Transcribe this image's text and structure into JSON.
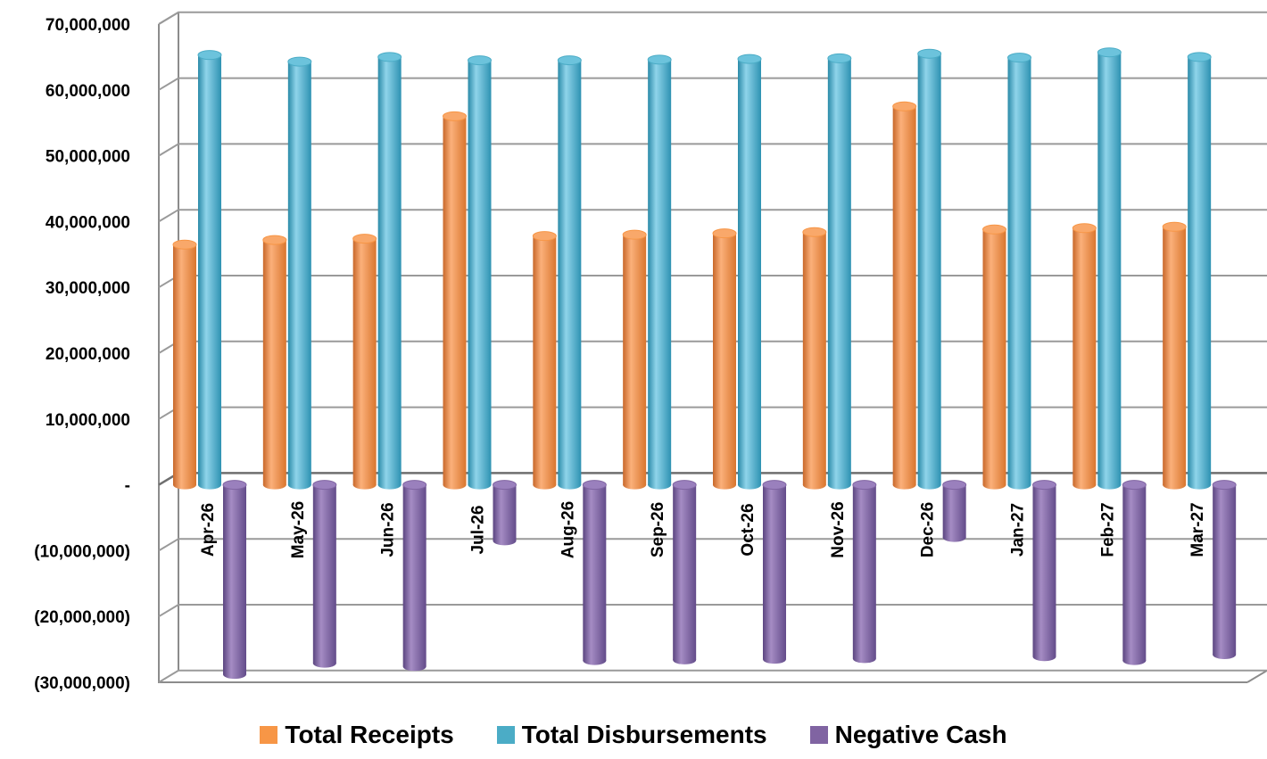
{
  "chart_data": {
    "type": "bar",
    "title": "",
    "xlabel": "",
    "ylabel": "",
    "ylim": [
      -30000000,
      70000000
    ],
    "yticks": [
      70000000,
      60000000,
      50000000,
      40000000,
      30000000,
      20000000,
      10000000,
      0,
      -10000000,
      -20000000,
      -30000000
    ],
    "ytick_labels": [
      "70,000,000",
      "60,000,000",
      "50,000,000",
      "40,000,000",
      "30,000,000",
      "20,000,000",
      "10,000,000",
      "-",
      "(10,000,000)",
      "(20,000,000)",
      "(30,000,000)"
    ],
    "categories": [
      "Apr-26",
      "May-26",
      "Jun-26",
      "Jul-26",
      "Aug-26",
      "Sep-26",
      "Oct-26",
      "Nov-26",
      "Dec-26",
      "Jan-27",
      "Feb-27",
      "Mar-27"
    ],
    "series": [
      {
        "name": "Total Receipts",
        "color": "#f79646",
        "values": [
          36500000,
          37200000,
          37400000,
          56000000,
          37800000,
          38000000,
          38200000,
          38400000,
          57500000,
          38800000,
          39000000,
          39200000
        ]
      },
      {
        "name": "Total Disbursements",
        "color": "#4bacc6",
        "values": [
          65300000,
          64300000,
          65000000,
          64500000,
          64500000,
          64600000,
          64700000,
          64800000,
          65500000,
          64900000,
          65700000,
          65000000
        ]
      },
      {
        "name": "Negative Cash",
        "color": "#8064a2",
        "values": [
          -28800000,
          -27100000,
          -27600000,
          -8500000,
          -26700000,
          -26600000,
          -26500000,
          -26400000,
          -8000000,
          -26100000,
          -26700000,
          -25800000
        ]
      }
    ],
    "grid": true,
    "legend_position": "bottom"
  }
}
